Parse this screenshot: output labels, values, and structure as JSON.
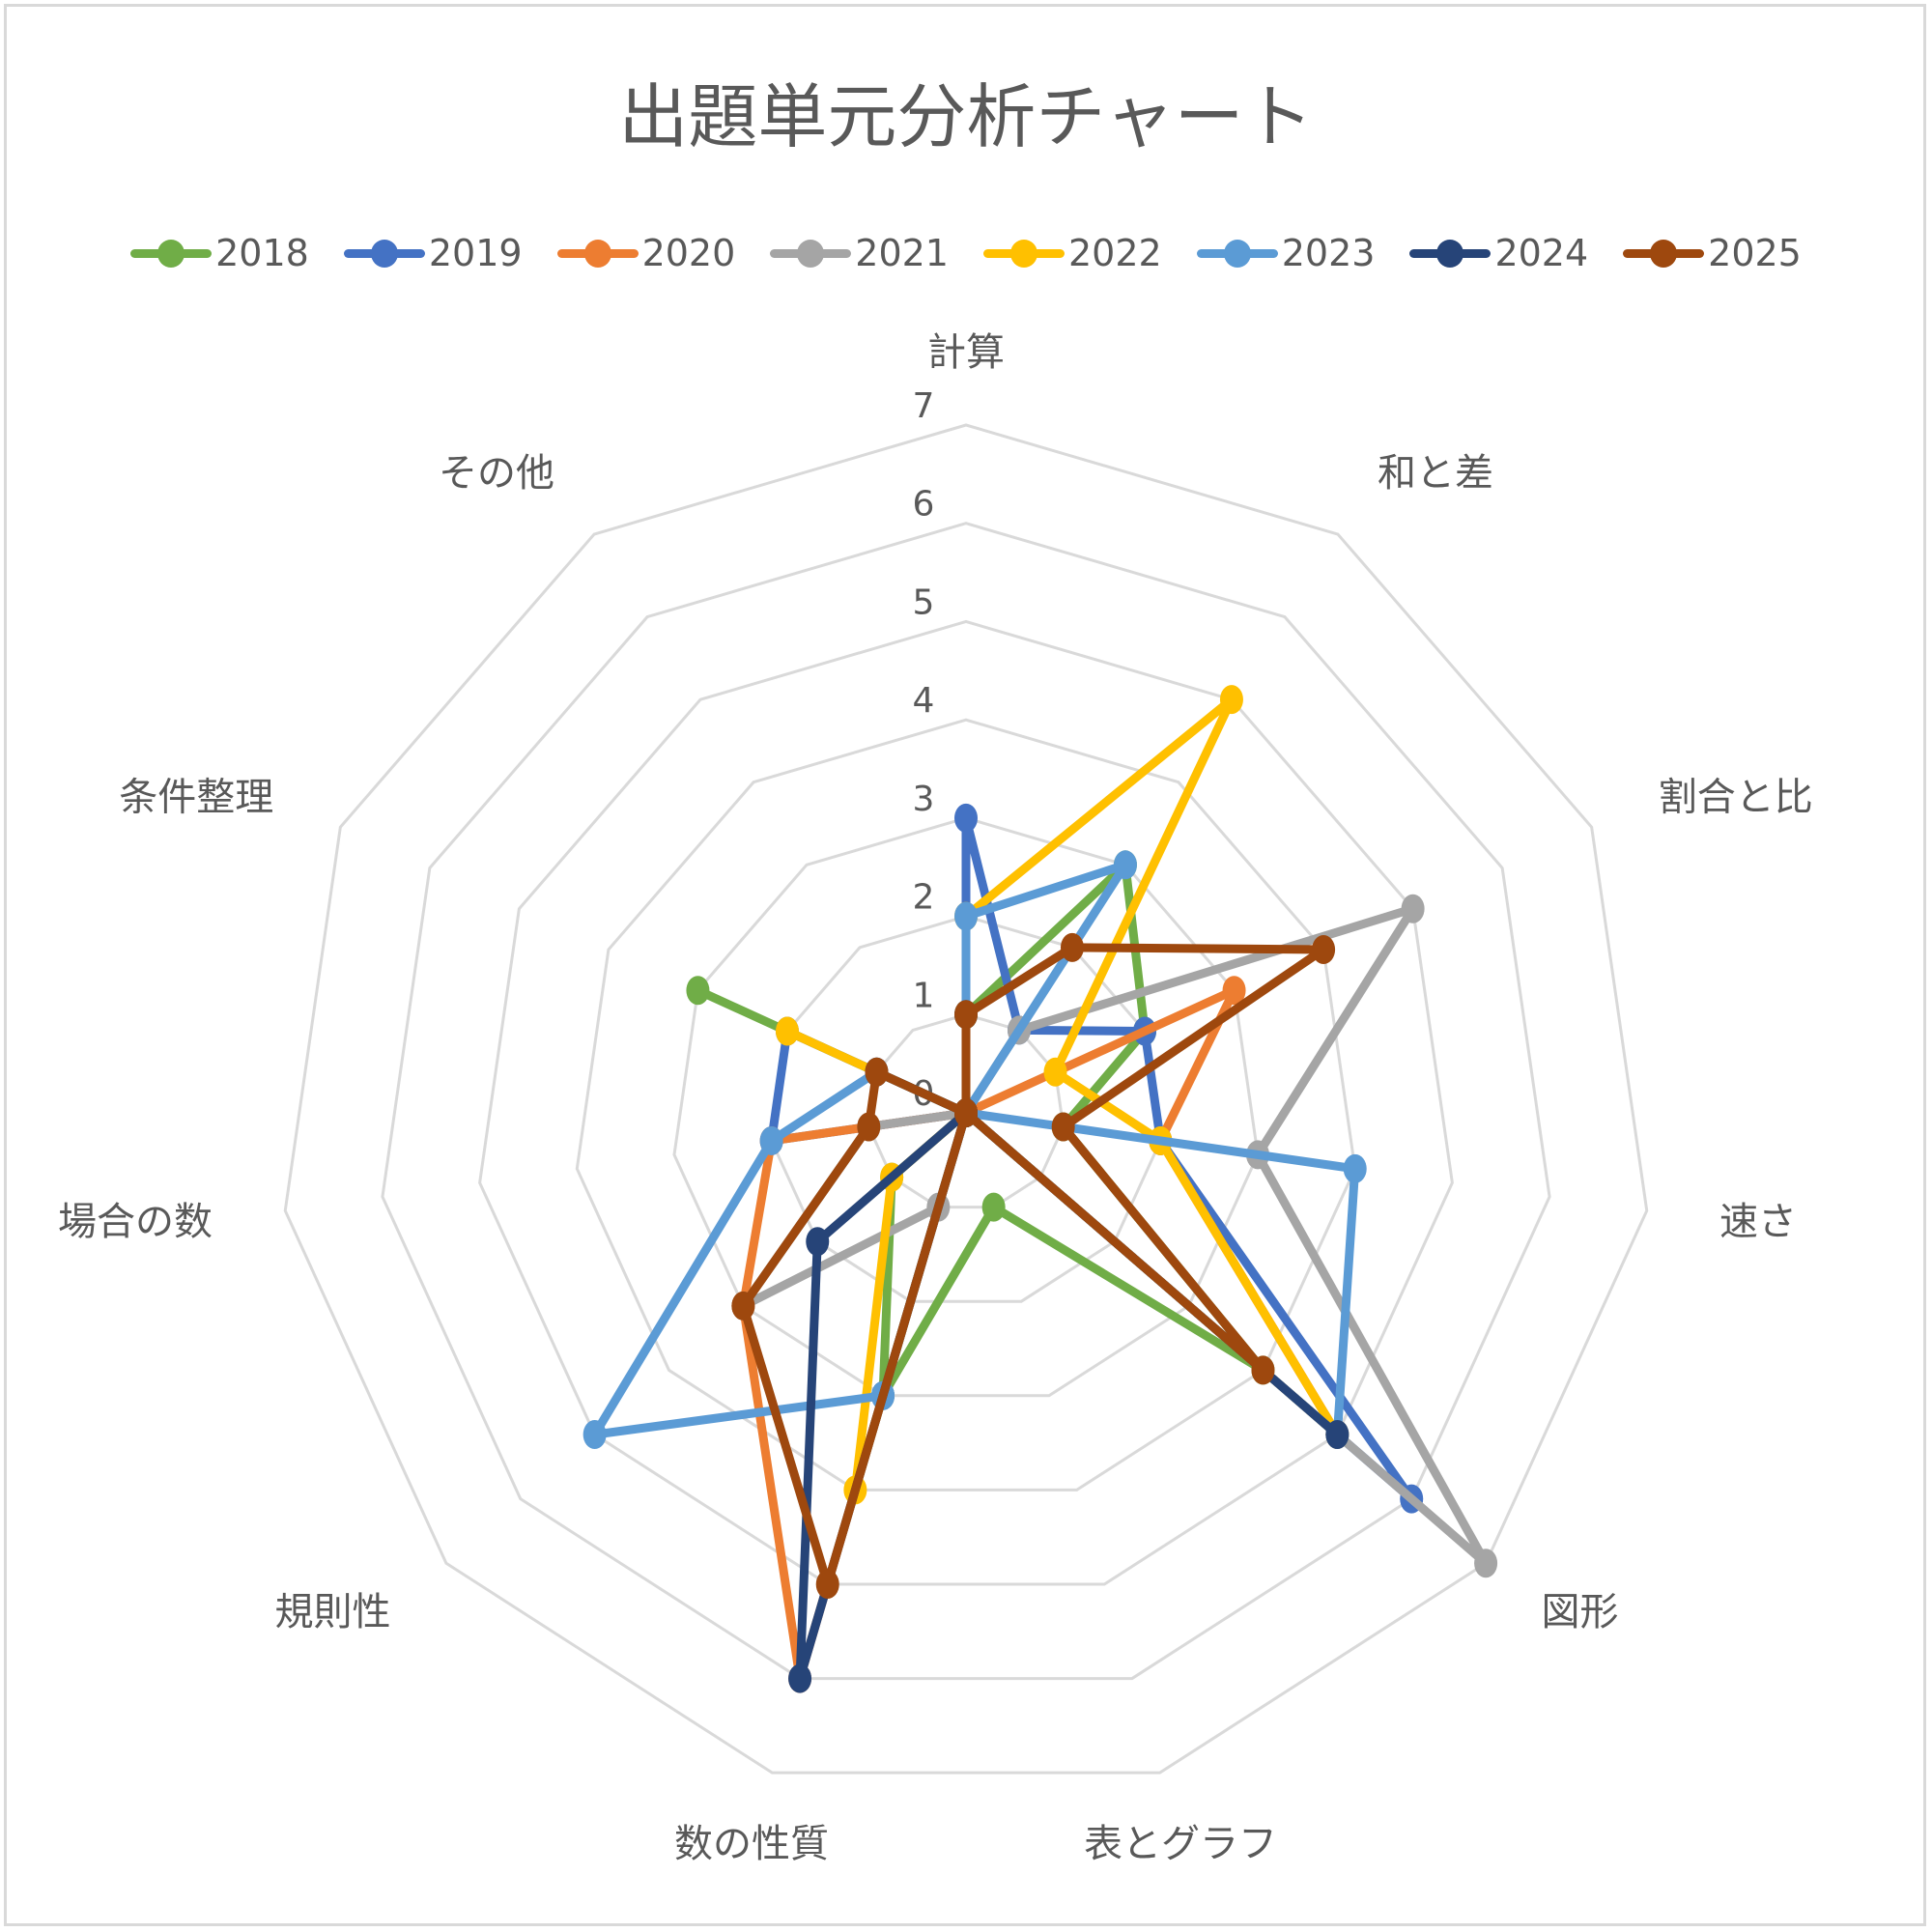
{
  "chart_data": {
    "type": "radar",
    "title": "出題単元分析チャート",
    "categories": [
      "計算",
      "和と差",
      "割合と比",
      "速さ",
      "図形",
      "表とグラフ",
      "数の性質",
      "規則性",
      "場合の数",
      "条件整理",
      "その他"
    ],
    "rlim": [
      0,
      7
    ],
    "ticks": [
      0,
      1,
      2,
      3,
      4,
      5,
      6,
      7
    ],
    "grid": true,
    "legend_position": "top",
    "series": [
      {
        "name": "2018",
        "color": "#70ad47",
        "values": [
          1,
          3,
          2,
          1,
          4,
          1,
          3,
          1,
          0,
          3,
          0
        ]
      },
      {
        "name": "2019",
        "color": "#4472c4",
        "values": [
          3,
          1,
          2,
          2,
          6,
          0,
          3,
          0,
          2,
          2,
          0
        ]
      },
      {
        "name": "2020",
        "color": "#ed7d31",
        "values": [
          0,
          0,
          3,
          2,
          5,
          0,
          6,
          3,
          2,
          0,
          0
        ]
      },
      {
        "name": "2021",
        "color": "#a5a5a5",
        "values": [
          0,
          1,
          5,
          3,
          7,
          0,
          1,
          3,
          1,
          0,
          0
        ]
      },
      {
        "name": "2022",
        "color": "#ffc000",
        "values": [
          2,
          5,
          1,
          2,
          5,
          0,
          4,
          1,
          0,
          2,
          0
        ]
      },
      {
        "name": "2023",
        "color": "#5b9bd5",
        "values": [
          2,
          3,
          0,
          4,
          5,
          0,
          3,
          5,
          2,
          1,
          0
        ]
      },
      {
        "name": "2024",
        "color": "#264478",
        "values": [
          1,
          0,
          0,
          0,
          5,
          0,
          6,
          2,
          0,
          1,
          0
        ]
      },
      {
        "name": "2025",
        "color": "#9e480e",
        "values": [
          1,
          2,
          4,
          1,
          4,
          0,
          5,
          3,
          1,
          1,
          0
        ]
      }
    ]
  }
}
